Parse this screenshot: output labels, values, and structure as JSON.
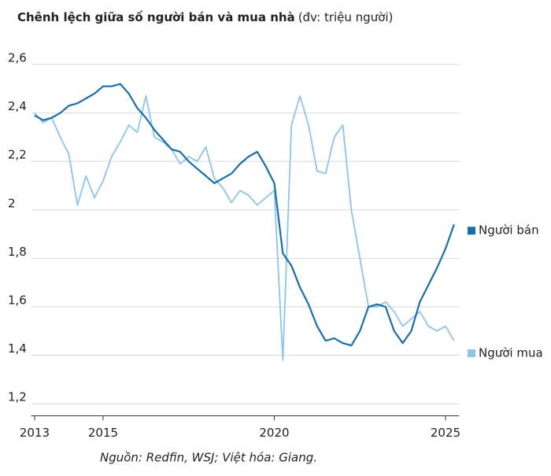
{
  "chart_data": {
    "type": "line",
    "title": "Chênh lệch giữa số người bán và mua nhà",
    "subtitle": "(đv: triệu người)",
    "source": "Nguồn: Redfin, WSJ; Việt hóa: Giang.",
    "x": [
      2013,
      2013.25,
      2013.5,
      2013.75,
      2014,
      2014.25,
      2014.5,
      2014.75,
      2015,
      2015.25,
      2015.5,
      2015.75,
      2016,
      2016.25,
      2016.5,
      2016.75,
      2017,
      2017.25,
      2017.5,
      2017.75,
      2018,
      2018.25,
      2018.5,
      2018.75,
      2019,
      2019.25,
      2019.5,
      2019.75,
      2020,
      2020.25,
      2020.5,
      2020.75,
      2021,
      2021.25,
      2021.5,
      2021.75,
      2022,
      2022.25,
      2022.5,
      2022.75,
      2023,
      2023.25,
      2023.5,
      2023.75,
      2024,
      2024.25,
      2024.5,
      2024.75,
      2025,
      2025.25
    ],
    "series": [
      {
        "name": "Người bán",
        "color": "#1a6fa8",
        "width": 2.2,
        "values": [
          2.39,
          2.37,
          2.38,
          2.4,
          2.43,
          2.44,
          2.46,
          2.48,
          2.51,
          2.51,
          2.52,
          2.48,
          2.42,
          2.38,
          2.33,
          2.29,
          2.25,
          2.24,
          2.2,
          2.17,
          2.14,
          2.11,
          2.13,
          2.15,
          2.19,
          2.22,
          2.24,
          2.18,
          2.11,
          1.82,
          1.77,
          1.68,
          1.61,
          1.52,
          1.46,
          1.47,
          1.45,
          1.44,
          1.5,
          1.6,
          1.61,
          1.6,
          1.5,
          1.45,
          1.5,
          1.62,
          1.69,
          1.76,
          1.84,
          1.94
        ]
      },
      {
        "name": "Người mua",
        "color": "#8ec4e8",
        "width": 1.8,
        "values": [
          2.4,
          2.36,
          2.38,
          2.3,
          2.23,
          2.02,
          2.14,
          2.05,
          2.12,
          2.22,
          2.28,
          2.35,
          2.32,
          2.47,
          2.3,
          2.28,
          2.25,
          2.19,
          2.22,
          2.2,
          2.26,
          2.13,
          2.09,
          2.03,
          2.08,
          2.06,
          2.02,
          2.05,
          2.08,
          1.38,
          2.35,
          2.47,
          2.35,
          2.16,
          2.15,
          2.3,
          2.35,
          2.0,
          1.8,
          1.6,
          1.6,
          1.62,
          1.58,
          1.52,
          1.55,
          1.58,
          1.52,
          1.5,
          1.52,
          1.46
        ]
      }
    ],
    "xlim": [
      2012.9,
      2025.4
    ],
    "xticks": [
      2013,
      2015,
      2020,
      2025
    ],
    "ylim": [
      1.15,
      2.6
    ],
    "yticks": [
      {
        "value": 1.2,
        "label": "1,2"
      },
      {
        "value": 1.4,
        "label": "1,4"
      },
      {
        "value": 1.6,
        "label": "1,6"
      },
      {
        "value": 1.8,
        "label": "1,8"
      },
      2,
      {
        "value": 2.2,
        "label": "2,2"
      },
      {
        "value": 2.4,
        "label": "2,4"
      },
      {
        "value": 2.6,
        "label": "2,6"
      }
    ],
    "grid": true,
    "legend": "right"
  }
}
